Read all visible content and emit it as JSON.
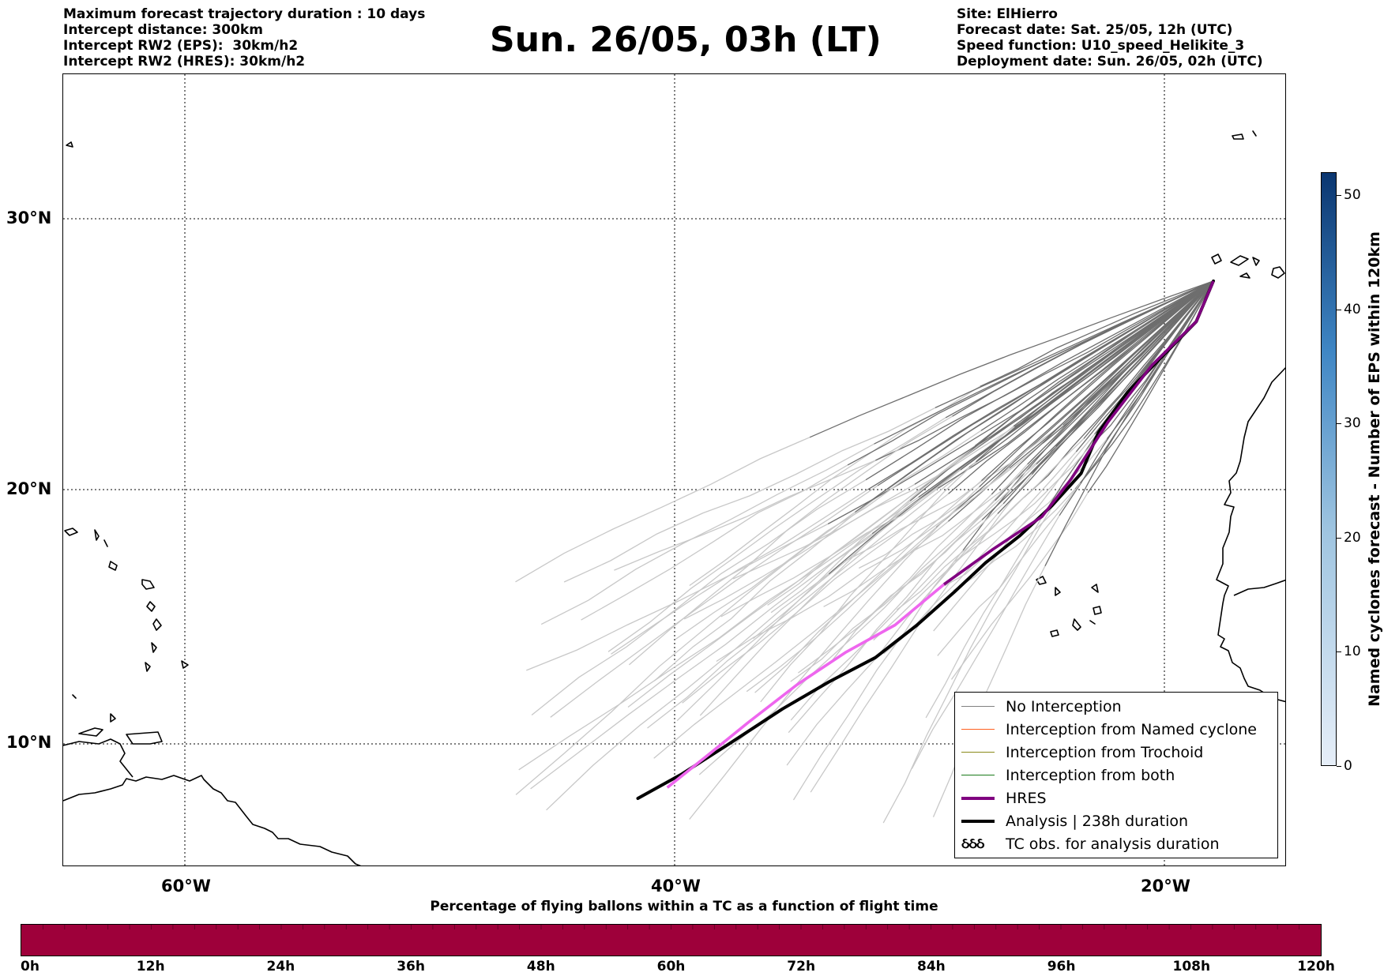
{
  "info_left": [
    "Maximum forecast trajectory duration : 10 days",
    "Intercept distance: 300km",
    "Intercept RW2 (EPS):  30km/h2",
    "Intercept RW2 (HRES): 30km/h2"
  ],
  "title": "Sun. 26/05, 03h (LT)",
  "info_right": [
    "Site: ElHierro",
    "Forecast date: Sat. 25/05, 12h (UTC)",
    "Speed function: U10_speed_Helikite_3",
    "Deployment date: Sun. 26/05, 02h (UTC)"
  ],
  "map": {
    "lon_range": [
      -65,
      15
    ],
    "lat_range": [
      5,
      35
    ],
    "lat_labels": [
      "30°N",
      "20°N",
      "10°N"
    ],
    "lon_labels": [
      "60°W",
      "40°W",
      "20°W"
    ],
    "grid": "dotted",
    "site": {
      "name": "ElHierro",
      "lon": -18.0,
      "lat": 27.7
    },
    "hres_track": {
      "color": "#800080",
      "color_late": "#ee66ee",
      "points": [
        [
          -18.0,
          27.7
        ],
        [
          -18.7,
          26.2
        ],
        [
          -20.5,
          24.6
        ],
        [
          -22.3,
          22.5
        ],
        [
          -23.8,
          20.4
        ],
        [
          -25.0,
          19.0
        ],
        [
          -27.0,
          17.8
        ],
        [
          -29.0,
          16.5
        ],
        [
          -31.0,
          15.0
        ],
        [
          -33.0,
          14.0
        ],
        [
          -35.0,
          12.8
        ],
        [
          -37.0,
          11.4
        ],
        [
          -38.5,
          10.3
        ],
        [
          -40.3,
          9.0
        ]
      ]
    },
    "analysis_track": {
      "color": "#000000",
      "points": [
        [
          -18.0,
          27.7
        ],
        [
          -18.7,
          26.2
        ],
        [
          -20.0,
          25.0
        ],
        [
          -21.5,
          23.6
        ],
        [
          -22.7,
          22.1
        ],
        [
          -23.4,
          20.6
        ],
        [
          -24.6,
          19.4
        ],
        [
          -25.9,
          18.3
        ],
        [
          -27.3,
          17.3
        ],
        [
          -28.6,
          16.2
        ],
        [
          -30.1,
          15.0
        ],
        [
          -31.8,
          13.8
        ],
        [
          -33.7,
          12.9
        ],
        [
          -35.6,
          11.9
        ],
        [
          -37.8,
          10.6
        ],
        [
          -39.7,
          9.5
        ],
        [
          -41.5,
          8.6
        ]
      ]
    }
  },
  "legend": {
    "items": [
      {
        "label": "No Interception",
        "color": "#808080",
        "symbol": "line-thin"
      },
      {
        "label": "Interception from Named cyclone",
        "color": "#ff6020",
        "symbol": "line-thin"
      },
      {
        "label": "Interception from Trochoid",
        "color": "#8b8b1a",
        "symbol": "line-thin"
      },
      {
        "label": "Interception from both",
        "color": "#1a7a1a",
        "symbol": "line-thin"
      },
      {
        "label": "HRES",
        "color": "#800080",
        "symbol": "line-thick"
      },
      {
        "label": "Analysis | 238h duration",
        "color": "#000000",
        "symbol": "line-thick"
      },
      {
        "label": "TC obs. for analysis duration",
        "color": "#000000",
        "symbol": "tc-glyphs",
        "glyphs": "ઠઠઠ"
      }
    ]
  },
  "colorbar_vertical": {
    "label": "Named cyclones forecast - Number of EPS within 120km",
    "range": [
      0,
      52
    ],
    "ticks": [
      "0",
      "10",
      "20",
      "30",
      "40",
      "50"
    ],
    "color_low": "#e6eef8",
    "color_high": "#0b3670"
  },
  "colorbar_horizontal": {
    "title": "Percentage of flying ballons within a TC as a function of flight time",
    "ticks": [
      "0h",
      "12h",
      "24h",
      "36h",
      "48h",
      "60h",
      "72h",
      "84h",
      "96h",
      "108h",
      "120h"
    ],
    "fill_color": "#9e003a"
  }
}
